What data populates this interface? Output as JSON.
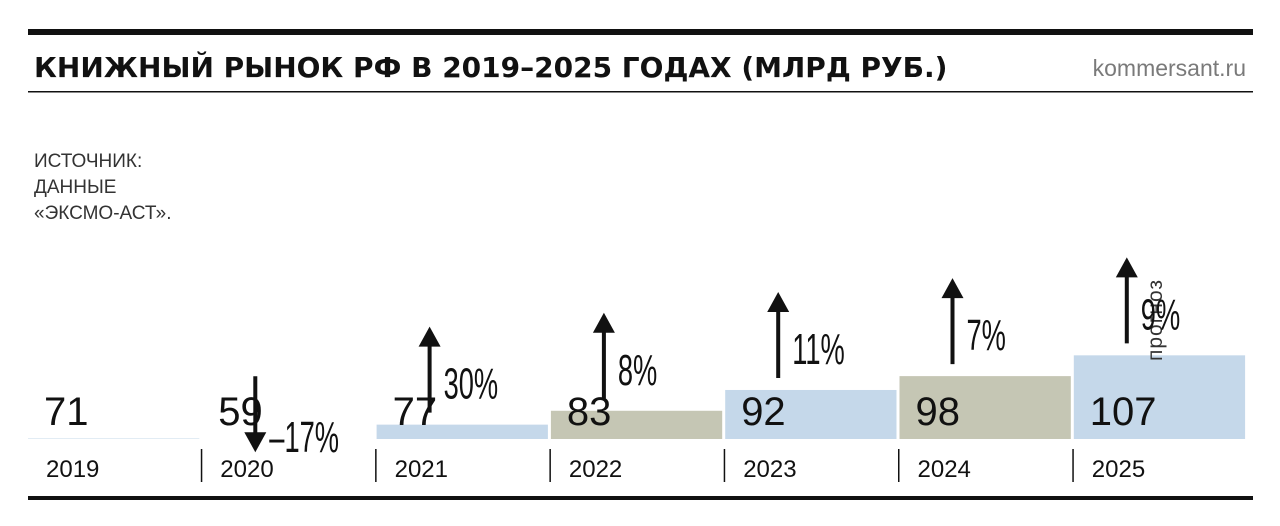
{
  "header": {
    "title": "КНИЖНЫЙ РЫНОК РФ В 2019–2025 ГОДАХ (МЛРД РУБ.)",
    "site": "kommersant.ru"
  },
  "source": {
    "lines": [
      "ИСТОЧНИК:",
      "ДАННЫЕ",
      "«ЭКСМО-АСТ»."
    ]
  },
  "colors": {
    "bar_blue": "#c5d8ea",
    "bar_gray": "#c5c6b4",
    "text": "#111111",
    "rule": "#111111"
  },
  "chart_data": {
    "type": "bar",
    "title": "КНИЖНЫЙ РЫНОК РФ В 2019–2025 ГОДАХ (МЛРД РУБ.)",
    "categories": [
      "2019",
      "2020",
      "2021",
      "2022",
      "2023",
      "2024",
      "2025"
    ],
    "values": [
      71,
      59,
      77,
      83,
      92,
      98,
      107
    ],
    "value_labels": [
      "71",
      "59",
      "77",
      "83",
      "92",
      "98",
      "107"
    ],
    "changes": [
      null,
      {
        "direction": "down",
        "label": "–17%"
      },
      {
        "direction": "up",
        "label": "30%"
      },
      {
        "direction": "up",
        "label": "8%"
      },
      {
        "direction": "up",
        "label": "11%"
      },
      {
        "direction": "up",
        "label": "7%"
      },
      {
        "direction": "up",
        "label": "9%"
      }
    ],
    "bar_colors": [
      "blue",
      "gray",
      "blue",
      "gray",
      "blue",
      "gray",
      "blue"
    ],
    "annotations": [
      {
        "category": "2025",
        "text": "прогноз"
      }
    ],
    "xlabel": "",
    "ylabel": "",
    "grid": false,
    "legend": "none"
  }
}
